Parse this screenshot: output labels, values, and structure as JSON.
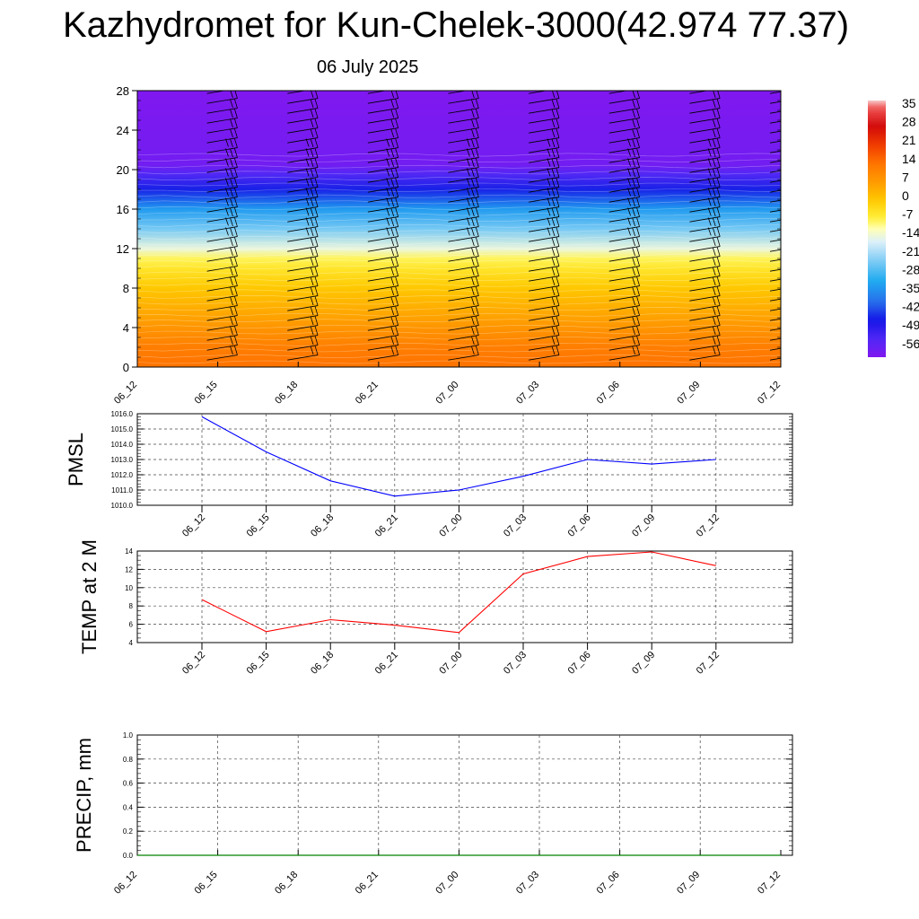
{
  "header": {
    "title": "Kazhydromet for Kun-Chelek-3000(42.974 77.37)",
    "subtitle": "06 July 2025"
  },
  "chart_data": [
    {
      "type": "heatmap",
      "description_of_axes": "height (km) vs time",
      "x_categories": [
        "06_12",
        "06_15",
        "06_18",
        "06_21",
        "07_00",
        "07_03",
        "07_06",
        "07_09",
        "07_12"
      ],
      "y_ticks": [
        0,
        4,
        8,
        12,
        16,
        20,
        24,
        28
      ],
      "ylim": [
        0,
        28
      ],
      "colorbar": {
        "labels": [
          "35",
          "28",
          "21",
          "14",
          "7",
          "0",
          "-7",
          "-14",
          "-21",
          "-28",
          "-35",
          "-42",
          "-49",
          "-56"
        ],
        "range": [
          -60,
          38
        ]
      },
      "temperature_profile": [
        {
          "h": 0,
          "t": 14
        },
        {
          "h": 2,
          "t": 12
        },
        {
          "h": 4,
          "t": 8
        },
        {
          "h": 6,
          "t": 4
        },
        {
          "h": 8,
          "t": 0
        },
        {
          "h": 10,
          "t": -5
        },
        {
          "h": 11,
          "t": -8
        },
        {
          "h": 12,
          "t": -14
        },
        {
          "h": 14,
          "t": -24
        },
        {
          "h": 16,
          "t": -33
        },
        {
          "h": 18,
          "t": -45
        },
        {
          "h": 19.5,
          "t": -53
        },
        {
          "h": 20.5,
          "t": -58
        },
        {
          "h": 28,
          "t": -60
        }
      ],
      "wind_barb_columns": [
        "06_15",
        "06_18",
        "06_21",
        "07_00",
        "07_03",
        "07_06",
        "07_09",
        "07_12"
      ]
    },
    {
      "type": "line",
      "ylabel": "PMSL",
      "ylim": [
        1010.0,
        1016.0
      ],
      "y_ticks": [
        "1010.0",
        "1011.0",
        "1012.0",
        "1013.0",
        "1014.0",
        "1015.0",
        "1016.0"
      ],
      "x": [
        "06_12",
        "06_15",
        "06_18",
        "06_21",
        "07_00",
        "07_03",
        "07_06",
        "07_09",
        "07_12"
      ],
      "series": [
        {
          "values": [
            1015.8,
            1013.5,
            1011.6,
            1010.6,
            1011.0,
            1011.9,
            1013.0,
            1012.7,
            1013.0
          ],
          "color": "#0000ff"
        }
      ]
    },
    {
      "type": "line",
      "ylabel": "TEMP at 2 M",
      "ylim": [
        4,
        14
      ],
      "y_ticks": [
        "4",
        "6",
        "8",
        "10",
        "12",
        "14"
      ],
      "x": [
        "06_12",
        "06_15",
        "06_18",
        "06_21",
        "07_00",
        "07_03",
        "07_06",
        "07_09",
        "07_12"
      ],
      "series": [
        {
          "values": [
            8.7,
            5.2,
            6.5,
            5.9,
            5.1,
            11.5,
            13.4,
            13.9,
            12.4
          ],
          "color": "#ff0000"
        }
      ]
    },
    {
      "type": "line",
      "ylabel": "PRECIP, mm",
      "ylim": [
        0,
        1.0
      ],
      "y_ticks": [
        "0.0",
        "0.2",
        "0.4",
        "0.6",
        "0.8",
        "1.0"
      ],
      "x": [
        "06_12",
        "06_15",
        "06_18",
        "06_21",
        "07_00",
        "07_03",
        "07_06",
        "07_09",
        "07_12"
      ],
      "series": [
        {
          "values": [
            0,
            0,
            0,
            0,
            0,
            0,
            0,
            0,
            0
          ],
          "color": "#008000"
        }
      ]
    }
  ],
  "colors": {
    "pmsl_line": "#0000ff",
    "temp_line": "#ff0000",
    "precip_line": "#008000"
  }
}
